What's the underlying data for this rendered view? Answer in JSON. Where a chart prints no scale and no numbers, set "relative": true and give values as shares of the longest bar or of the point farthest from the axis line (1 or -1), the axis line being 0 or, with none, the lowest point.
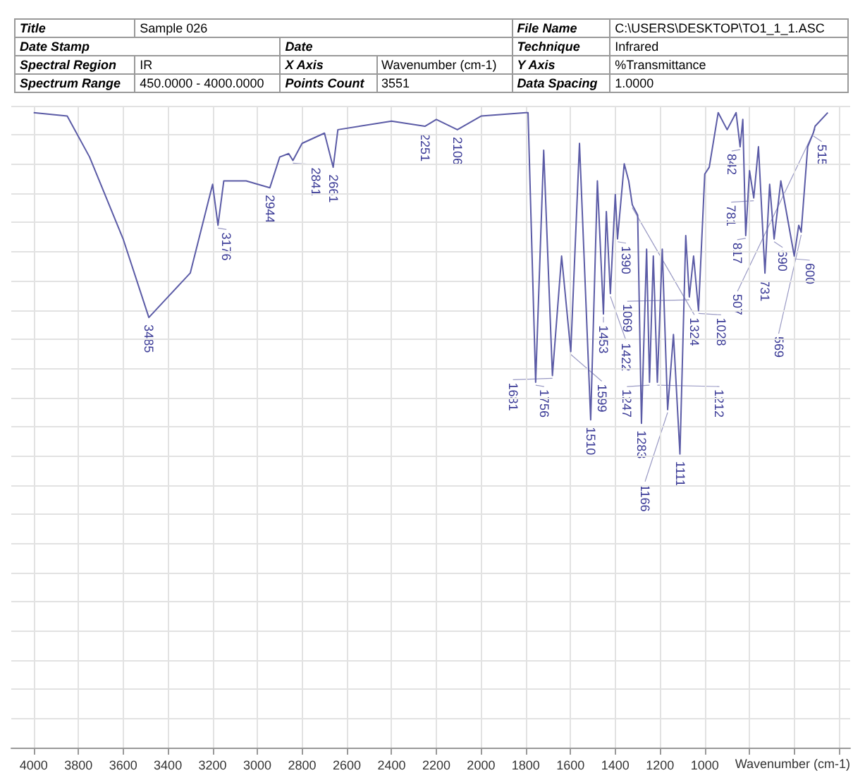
{
  "chart_data": {
    "type": "line",
    "title": "Sample 026",
    "xlabel": "Wavenumber (cm-1)",
    "relative": true,
    "grid": true,
    "marker": "none",
    "line_style": "solid",
    "x": [
      4000,
      3850,
      3750,
      3600,
      3485,
      3400,
      3300,
      3200,
      3176,
      3150,
      3050,
      2944,
      2900,
      2860,
      2841,
      2800,
      2700,
      2661,
      2640,
      2400,
      2251,
      2200,
      2106,
      2000,
      1800,
      1790,
      1756,
      1720,
      1681,
      1640,
      1599,
      1560,
      1510,
      1480,
      1453,
      1440,
      1422,
      1400,
      1390,
      1360,
      1340,
      1324,
      1300,
      1283,
      1260,
      1247,
      1230,
      1212,
      1190,
      1166,
      1140,
      1111,
      1085,
      1069,
      1050,
      1028,
      1000,
      980,
      940,
      900,
      860,
      842,
      830,
      817,
      800,
      781,
      760,
      731,
      710,
      690,
      660,
      600,
      580,
      569,
      540,
      515,
      507,
      450
    ],
    "xlim": [
      4100,
      350
    ],
    "xticks": [
      4000,
      3800,
      3600,
      3400,
      3200,
      3000,
      2800,
      2600,
      2400,
      2200,
      2000,
      1800,
      1600,
      1400,
      1200,
      1000,
      {
        "value": 800,
        "label": null
      },
      {
        "value": 600,
        "label": null
      },
      {
        "value": 400,
        "label": null
      }
    ],
    "series": [
      {
        "color": "#5b5ba6",
        "values": [
          1.0,
          0.99,
          0.87,
          0.63,
          0.4,
          0.46,
          0.53,
          0.79,
          0.67,
          0.8,
          0.8,
          0.78,
          0.87,
          0.88,
          0.86,
          0.91,
          0.94,
          0.84,
          0.95,
          0.975,
          0.96,
          0.98,
          0.95,
          0.99,
          1.0,
          1.0,
          0.21,
          0.89,
          0.23,
          0.58,
          0.3,
          0.91,
          0.1,
          0.8,
          0.41,
          0.71,
          0.47,
          0.76,
          0.63,
          0.85,
          0.8,
          0.73,
          0.7,
          0.09,
          0.6,
          0.21,
          0.58,
          0.21,
          0.6,
          0.13,
          0.35,
          0.0,
          0.64,
          0.46,
          0.58,
          0.42,
          0.82,
          0.84,
          1.0,
          0.95,
          1.0,
          0.9,
          0.98,
          0.64,
          0.83,
          0.75,
          0.9,
          0.53,
          0.79,
          0.63,
          0.8,
          0.58,
          0.67,
          0.65,
          0.9,
          0.94,
          0.96,
          1.0
        ]
      }
    ],
    "annotations": [
      "Title",
      "File Name",
      "C:\\USERS\\DESKTOP\\TO1_1_1.ASC",
      "Date Stamp",
      "Date",
      "Technique",
      "Infrared",
      "Spectral Region",
      "IR",
      "X Axis",
      "Wavenumber (cm-1)",
      "Y Axis",
      "%Transmittance",
      "Spectrum Range",
      "450.0000 - 4000.0000",
      "Points Count",
      "3551",
      "Data Spacing",
      "1.0000",
      {
        "text": "3485",
        "x": 3485,
        "y": 0.4
      },
      {
        "text": "3176",
        "x": 3176,
        "y": 0.67
      },
      {
        "text": "2944",
        "x": 2944,
        "y": 0.78
      },
      {
        "text": "2841",
        "x": 2841,
        "y": 0.86
      },
      {
        "text": "2661",
        "x": 2661,
        "y": 0.84
      },
      {
        "text": "2251",
        "x": 2251,
        "y": 0.96
      },
      {
        "text": "2106",
        "x": 2106,
        "y": 0.95
      },
      {
        "text": "1756",
        "x": 1756,
        "y": 0.21
      },
      {
        "text": "1681",
        "x": 1681,
        "y": 0.23
      },
      {
        "text": "1599",
        "x": 1599,
        "y": 0.3
      },
      {
        "text": "1510",
        "x": 1510,
        "y": 0.1
      },
      {
        "text": "1453",
        "x": 1453,
        "y": 0.41
      },
      {
        "text": "1422",
        "x": 1422,
        "y": 0.47
      },
      {
        "text": "1390",
        "x": 1390,
        "y": 0.63
      },
      {
        "text": "1324",
        "x": 1324,
        "y": 0.73
      },
      {
        "text": "1283",
        "x": 1283,
        "y": 0.09
      },
      {
        "text": "1247",
        "x": 1247,
        "y": 0.21
      },
      {
        "text": "1212",
        "x": 1212,
        "y": 0.21
      },
      {
        "text": "1166",
        "x": 1166,
        "y": 0.13
      },
      {
        "text": "1111",
        "x": 1111,
        "y": 0.0
      },
      {
        "text": "1069",
        "x": 1069,
        "y": 0.46
      },
      {
        "text": "1028",
        "x": 1028,
        "y": 0.42
      },
      {
        "text": "842",
        "x": 842,
        "y": 0.9
      },
      {
        "text": "817",
        "x": 817,
        "y": 0.64
      },
      {
        "text": "781",
        "x": 781,
        "y": 0.75
      },
      {
        "text": "731",
        "x": 731,
        "y": 0.53
      },
      {
        "text": "690",
        "x": 690,
        "y": 0.63
      },
      {
        "text": "600",
        "x": 600,
        "y": 0.58
      },
      {
        "text": "569",
        "x": 569,
        "y": 0.65
      },
      {
        "text": "515",
        "x": 515,
        "y": 0.94
      },
      {
        "text": "507",
        "x": 507,
        "y": 0.96
      }
    ]
  }
}
